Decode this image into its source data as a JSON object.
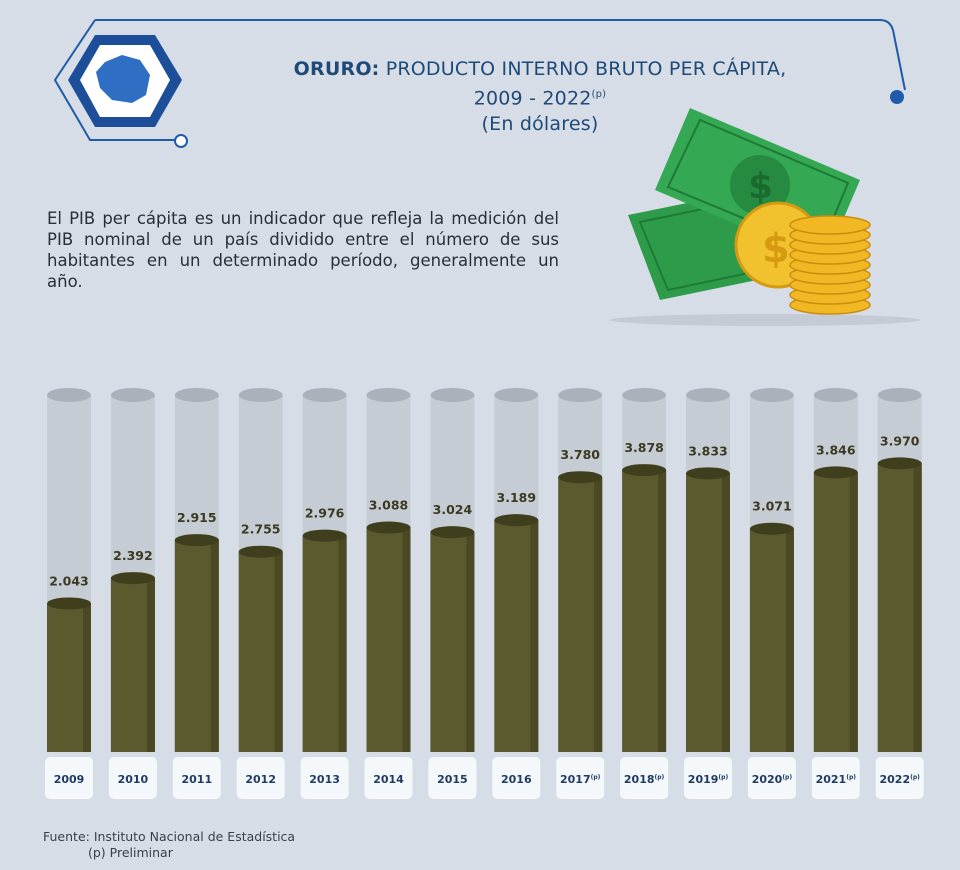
{
  "header": {
    "title_bold": "ORURO:",
    "title_rest": " PRODUCTO INTERNO BRUTO PER CÁPITA,",
    "period": "2009 - 2022",
    "period_sup": "(p)",
    "unit": "(En dólares)"
  },
  "description": "El PIB per cápita es un indicador que refleja la medición del PIB nominal de un país dividido entre el número de sus habitantes en un determinado período, generalmente un año.",
  "colors": {
    "bar": "#5b5a2e",
    "tube": "#bfc5cc",
    "title": "#1f4a78",
    "frame": "#1f5ba8",
    "money": "#2e9b4a",
    "coin": "#f2c12e"
  },
  "icons": [
    "oruro-map-icon",
    "money-bills-coins-icon"
  ],
  "chart_data": {
    "type": "bar",
    "categories": [
      "2009",
      "2010",
      "2011",
      "2012",
      "2013",
      "2014",
      "2015",
      "2016",
      "2017",
      "2018",
      "2019",
      "2020",
      "2021",
      "2022"
    ],
    "category_sup": [
      "",
      "",
      "",
      "",
      "",
      "",
      "",
      "",
      "(p)",
      "(p)",
      "(p)",
      "(p)",
      "(p)",
      "(p)"
    ],
    "values": [
      2043,
      2392,
      2915,
      2755,
      2976,
      3088,
      3024,
      3189,
      3780,
      3878,
      3833,
      3071,
      3846,
      3970
    ],
    "value_labels": [
      "2.043",
      "2.392",
      "2.915",
      "2.755",
      "2.976",
      "3.088",
      "3.024",
      "3.189",
      "3.780",
      "3.878",
      "3.833",
      "3.071",
      "3.846",
      "3.970"
    ],
    "title": "",
    "xlabel": "",
    "ylabel": "",
    "grid": false,
    "legend": "none"
  },
  "footer": {
    "source": "Fuente: Instituto Nacional de Estadística",
    "note": "(p) Preliminar"
  }
}
